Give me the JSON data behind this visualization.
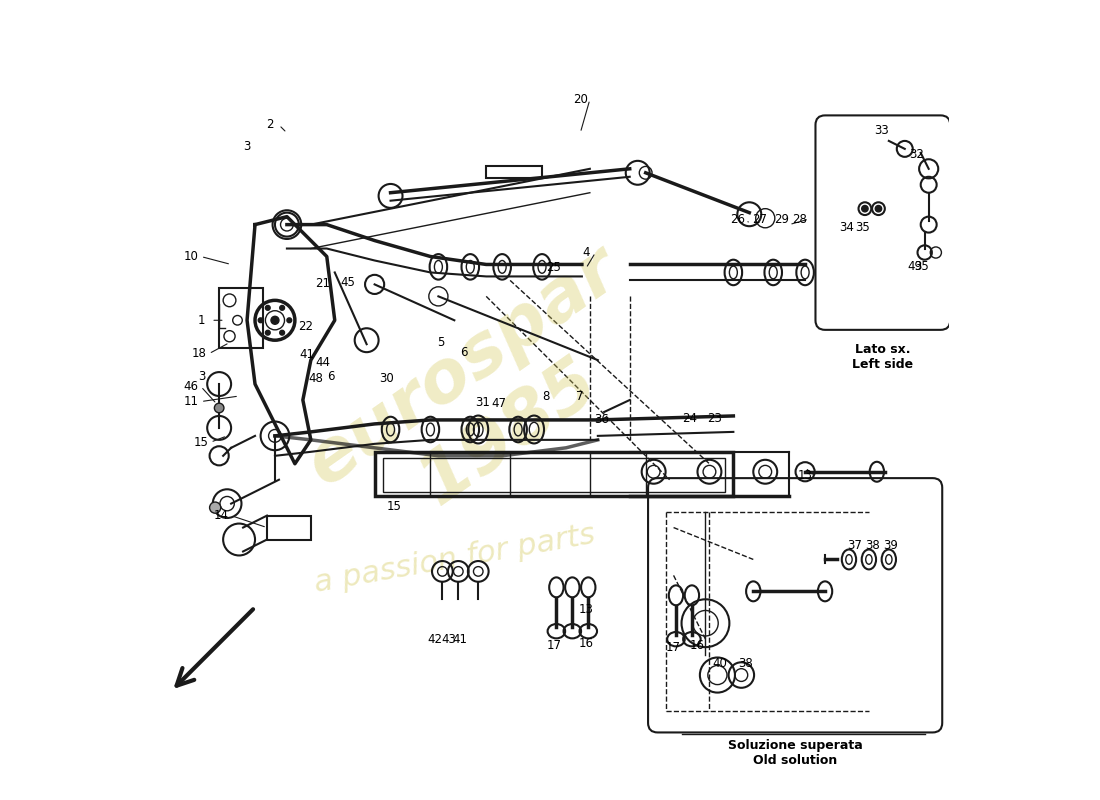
{
  "bg_color": "#ffffff",
  "line_color": "#1a1a1a",
  "label_color": "#000000",
  "watermark_color": "#d4c85a",
  "box1_label": "Lato sx.\nLeft side",
  "box2_label": "Soluzione superata\nOld solution"
}
